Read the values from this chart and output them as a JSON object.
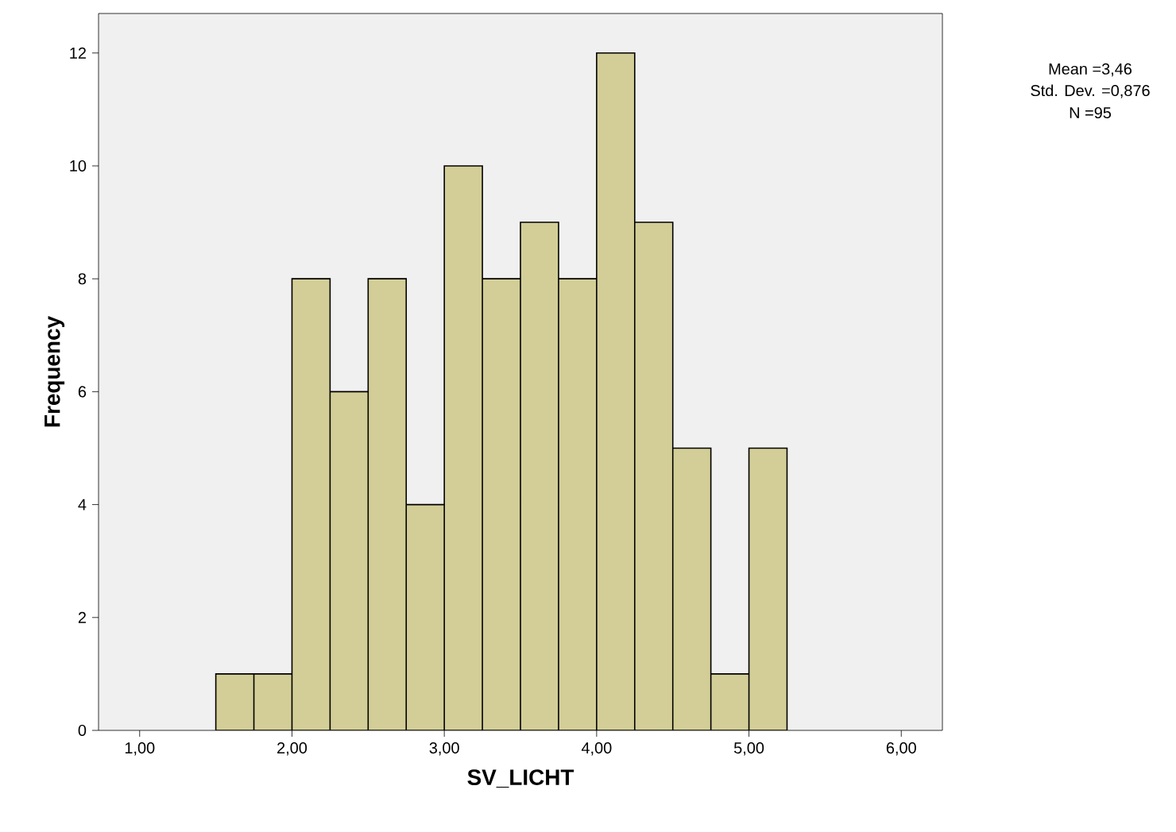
{
  "chart_data": {
    "type": "histogram",
    "xlabel": "SV_LICHT",
    "ylabel": "Frequency",
    "bins": [
      1.5,
      1.75,
      2.0,
      2.25,
      2.5,
      2.75,
      3.0,
      3.25,
      3.5,
      3.75,
      4.0,
      4.25,
      4.5,
      4.75,
      5.0,
      5.25
    ],
    "values": [
      1,
      1,
      8,
      6,
      8,
      4,
      10,
      8,
      9,
      8,
      12,
      9,
      5,
      1,
      5
    ],
    "color": "#d3ce97",
    "xlim": [
      0.73,
      6.27
    ],
    "ylim": [
      0,
      12.7
    ],
    "xticks": [
      {
        "value": 1,
        "label": "1,00"
      },
      {
        "value": 2,
        "label": "2,00"
      },
      {
        "value": 3,
        "label": "3,00"
      },
      {
        "value": 4,
        "label": "4,00"
      },
      {
        "value": 5,
        "label": "5,00"
      },
      {
        "value": 6,
        "label": "6,00"
      }
    ],
    "yticks": [
      0,
      2,
      4,
      6,
      8,
      10,
      12
    ],
    "grid": false,
    "annotations": [
      "Mean =3,46",
      "Std. Dev. =0,876",
      "N =95"
    ]
  }
}
